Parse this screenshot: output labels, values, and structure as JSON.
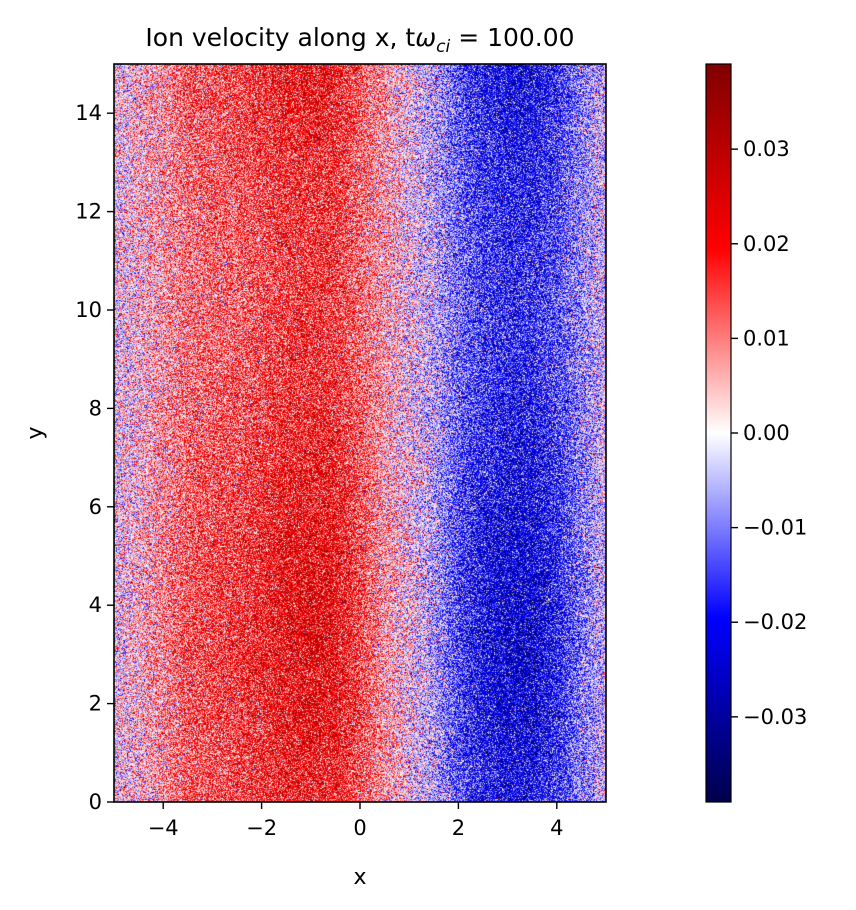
{
  "chart_data": {
    "type": "heatmap",
    "title": {
      "prefix": "Ion velocity along x, t",
      "symbol": "ω",
      "subscript": "ci",
      "suffix": " = 100.00"
    },
    "xlabel": "x",
    "ylabel": "y",
    "xlim": [
      -5,
      5
    ],
    "ylim": [
      0,
      15
    ],
    "x_ticks": [
      -4,
      -2,
      0,
      2,
      4
    ],
    "x_tick_labels": [
      "−4",
      "−2",
      "0",
      "2",
      "4"
    ],
    "y_ticks": [
      0,
      2,
      4,
      6,
      8,
      10,
      12,
      14
    ],
    "y_tick_labels": [
      "0",
      "2",
      "4",
      "6",
      "8",
      "10",
      "12",
      "14"
    ],
    "colormap": "seismic",
    "clim": [
      -0.039,
      0.039
    ],
    "colorbar_ticks": [
      0.03,
      0.02,
      0.01,
      0.0,
      -0.01,
      -0.02,
      -0.03
    ],
    "colorbar_tick_labels": [
      "0.03",
      "0.02",
      "0.01",
      "0.00",
      "−0.01",
      "−0.02",
      "−0.03"
    ],
    "profile_x": [
      -5,
      -4.5,
      -4,
      -3.5,
      -3,
      -2.5,
      -2,
      -1.5,
      -1,
      -0.5,
      0,
      0.5,
      1,
      1.5,
      2,
      2.5,
      3,
      3.5,
      4,
      4.5,
      5
    ],
    "profile_mean": [
      0.0,
      0.003,
      0.007,
      0.012,
      0.013,
      0.014,
      0.016,
      0.018,
      0.019,
      0.018,
      0.013,
      0.006,
      0.0,
      -0.005,
      -0.013,
      -0.018,
      -0.02,
      -0.02,
      -0.016,
      -0.009,
      -0.003
    ],
    "noise_amplitude": 0.02,
    "grid": false
  }
}
